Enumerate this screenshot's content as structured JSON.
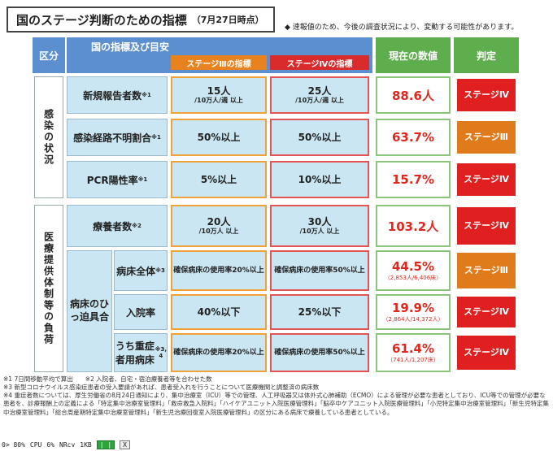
{
  "title": "国のステージ判断のための指標",
  "title_date": "（7月27日時点）",
  "note_top": "◆ 速報値のため、今後の調査状況により、変動する可能性があります。",
  "headers": {
    "kubun": "区分",
    "indicator": "国の指標及び目安",
    "stage3": "ステージⅢの指標",
    "stage4": "ステージⅣの指標",
    "current": "現在の数値",
    "judge": "判定"
  },
  "categories": {
    "infection": "感染の状況",
    "medical": "医療提供体制等の負荷",
    "bed_pressure": "病床のひっ迫具合"
  },
  "rows": [
    {
      "label": "新規報告者数",
      "mark": "※1",
      "s3_main": "15人",
      "s3_sub": "/10万人/週 以上",
      "s4_main": "25人",
      "s4_sub": "/10万人/週 以上",
      "value": "88.6人",
      "value_sub": "",
      "judge": "ステージⅣ",
      "judge_color": "#e02020"
    },
    {
      "label": "感染経路不明割合",
      "mark": "※1",
      "s3_main": "50%以上",
      "s3_sub": "",
      "s4_main": "50%以上",
      "s4_sub": "",
      "value": "63.7%",
      "value_sub": "",
      "judge": "ステージⅢ",
      "judge_color": "#e07b1c"
    },
    {
      "label": "PCR陽性率",
      "mark": "※1",
      "s3_main": "5%以上",
      "s3_sub": "",
      "s4_main": "10%以上",
      "s4_sub": "",
      "value": "15.7%",
      "value_sub": "",
      "judge": "ステージⅣ",
      "judge_color": "#e02020"
    },
    {
      "label": "療養者数",
      "mark": "※2",
      "s3_main": "20人",
      "s3_sub": "/10万人 以上",
      "s4_main": "30人",
      "s4_sub": "/10万人 以上",
      "value": "103.2人",
      "value_sub": "",
      "judge": "ステージⅣ",
      "judge_color": "#e02020"
    },
    {
      "label": "病床全体",
      "mark": "※3",
      "s3_main": "確保病床の使用率20%以上",
      "s3_sub": "",
      "s4_main": "確保病床の使用率50%以上",
      "s4_sub": "",
      "value": "44.5%",
      "value_sub": "（2,853人/6,406床）",
      "judge": "ステージⅢ",
      "judge_color": "#e07b1c"
    },
    {
      "label": "入院率",
      "mark": "",
      "s3_main": "40%以下",
      "s3_sub": "",
      "s4_main": "25%以下",
      "s4_sub": "",
      "value": "19.9%",
      "value_sub": "（2,864人/14,372人）",
      "judge": "ステージⅣ",
      "judge_color": "#e02020"
    },
    {
      "label": "うち重症者用病床",
      "mark": "※3, 4",
      "s3_main": "確保病床の使用率20%以上",
      "s3_sub": "",
      "s4_main": "確保病床の使用率50%以上",
      "s4_sub": "",
      "value": "61.4%",
      "value_sub": "（741人/1,207床）",
      "judge": "ステージⅣ",
      "judge_color": "#e02020"
    }
  ],
  "footnotes": [
    "※1 7日間移動平均で算出　　※2 入院者、自宅・宿泊療養者等を合わせた数",
    "※3 新型コロナウイルス感染症患者の受入要請があれば、患者受入れを行うことについて医療機関と調整済の病床数",
    "※4 重症者数については、厚生労働省の8月24日通知により、集中治療室（ICU）等での管理、人工呼吸器又は体外式心肺補助（ECMO）による管理が必要な患者としており、ICU等での管理が必要な患者を、診療報酬上の定義による「特定集中治療室管理料」「救命救急入院料」「ハイケアユニット入院医療管理料」「脳卒中ケアユニット入院医療管理料」「小児特定集中治療室管理料」「新生児特定集中治療室管理料」「総合周産期特定集中治療室管理料」「新生児治療回復室入院医療管理料」の区分にある病床で療養している患者としている。"
  ],
  "statusbar": {
    "a": "0> 80%",
    "cpu": "CPU",
    "cpu_v": "6%",
    "nrcv": "NRcv",
    "kb": "1KB",
    "btn_a": "| |",
    "btn_b": "X"
  }
}
